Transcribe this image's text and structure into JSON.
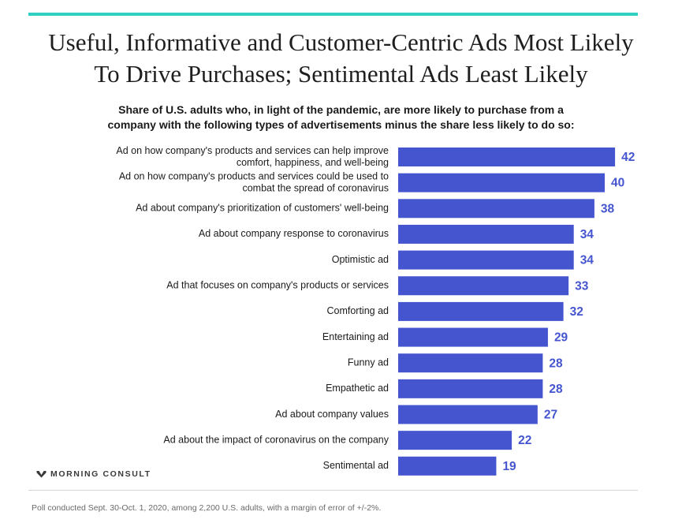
{
  "header": {
    "title_line1": "Useful, Informative and Customer-Centric Ads Most Likely",
    "title_line2": "To Drive Purchases; Sentimental Ads Least Likely",
    "subtitle_line1": "Share of U.S. adults who, in light of the pandemic, are more likely to purchase from a",
    "subtitle_line2": "company with the following types of advertisements minus the share less likely to do so:",
    "accent_color": "#2fd0c1"
  },
  "brand": {
    "name": "MORNING CONSULT",
    "icon": "morning-consult-logo-icon"
  },
  "footnote": "Poll conducted Sept. 30-Oct. 1, 2020, among 2,200 U.S. adults, with a margin of error of +/-2%.",
  "chart_data": {
    "type": "bar",
    "orientation": "horizontal",
    "categories": [
      [
        "Ad on how company's products and services can help improve",
        "comfort, happiness, and well-being"
      ],
      [
        "Ad on how company's products and services could be used to",
        "combat the spread of coronavirus"
      ],
      [
        "Ad about company's prioritization of customers' well-being"
      ],
      [
        "Ad about company response to coronavirus"
      ],
      [
        "Optimistic ad"
      ],
      [
        "Ad that focuses on company's products or services"
      ],
      [
        "Comforting ad"
      ],
      [
        "Entertaining ad"
      ],
      [
        "Funny ad"
      ],
      [
        "Empathetic ad"
      ],
      [
        "Ad about company values"
      ],
      [
        "Ad about the impact of coronavirus on the company"
      ],
      [
        "Sentimental ad"
      ]
    ],
    "values": [
      42,
      40,
      38,
      34,
      34,
      33,
      32,
      29,
      28,
      28,
      27,
      22,
      19
    ],
    "bar_color": "#4555cf",
    "value_label_color": "#4555cf",
    "grid": false,
    "legend": "none"
  }
}
